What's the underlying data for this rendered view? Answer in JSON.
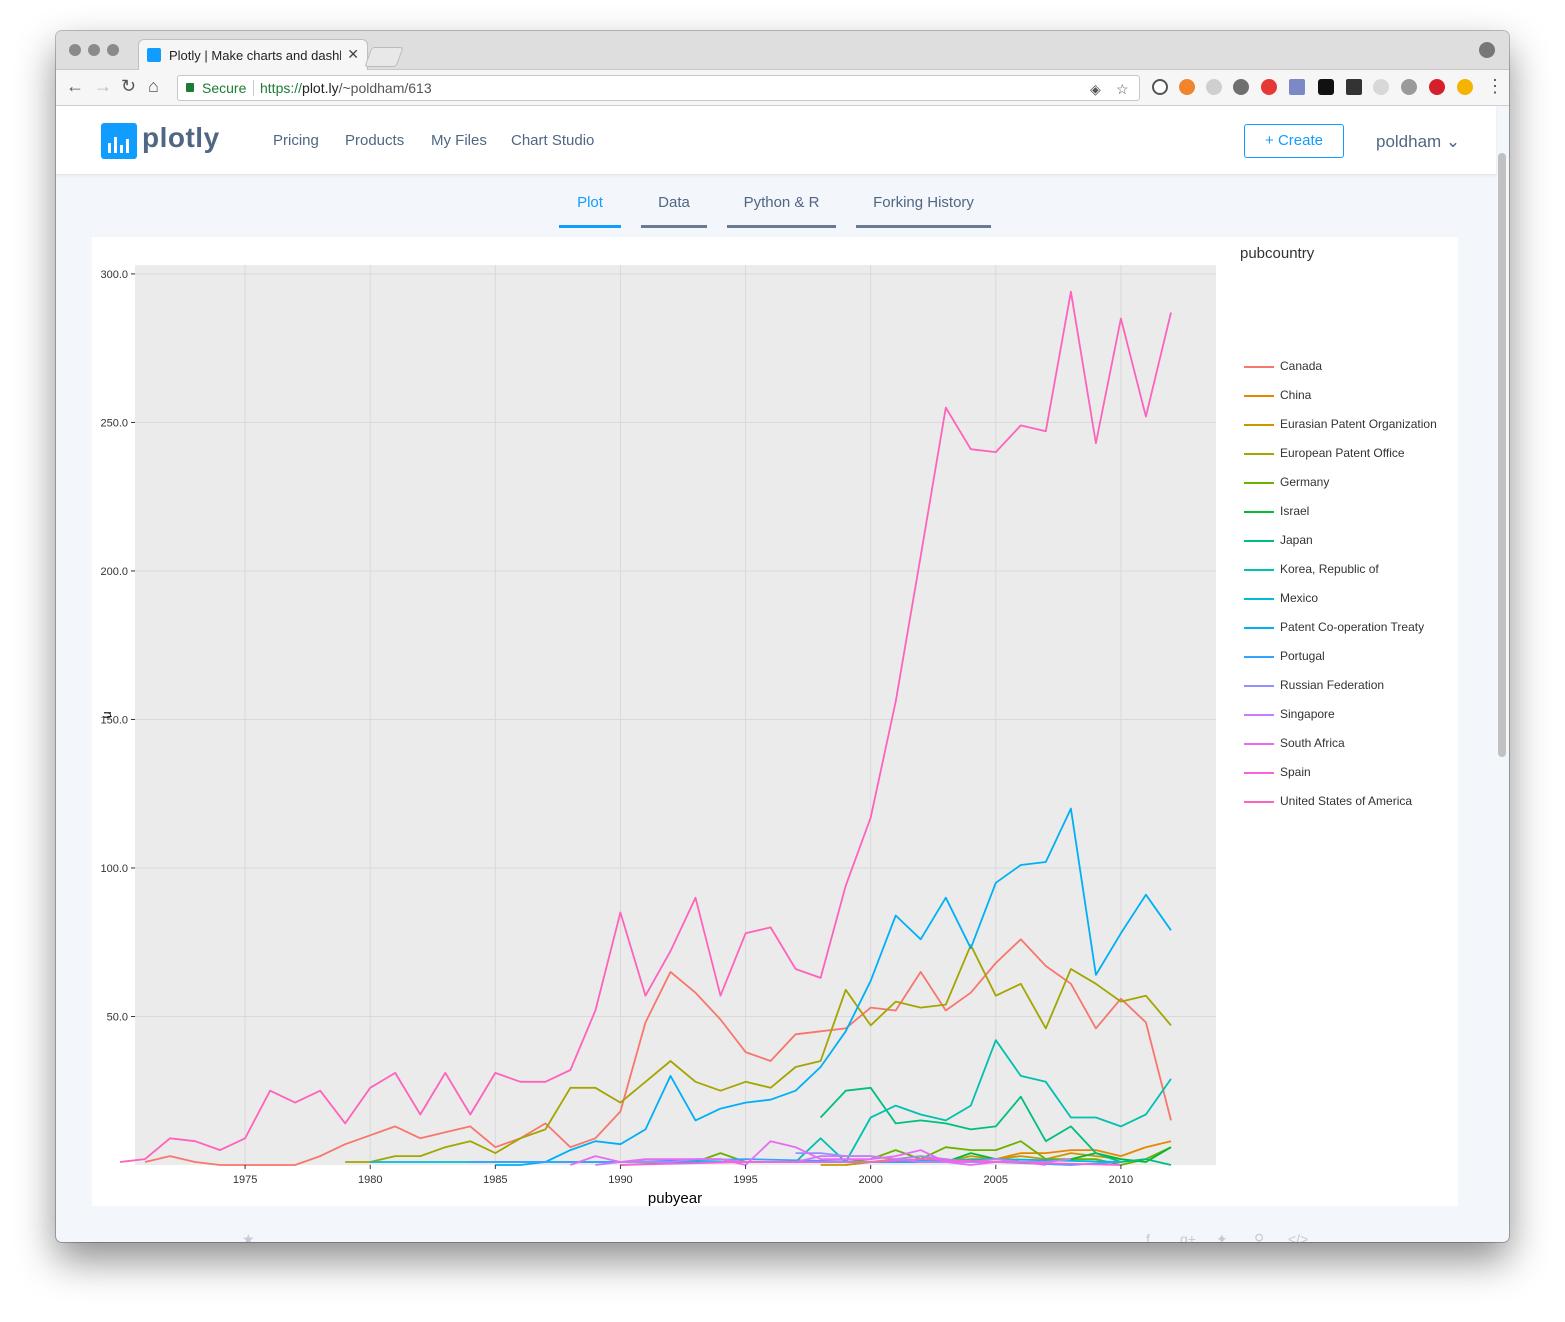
{
  "browser": {
    "tab_title": "Plotly | Make charts and dashb",
    "tab_close": "✕",
    "secure_label": "Secure",
    "url_scheme": "https://",
    "url_host": "plot.ly",
    "url_path": "/~poldham/613"
  },
  "site_nav": {
    "logo_text": "plotly",
    "links": [
      "Pricing",
      "Products",
      "My Files",
      "Chart Studio"
    ],
    "create_label": "+ Create",
    "user_label": "poldham ⌄"
  },
  "page_tabs": [
    "Plot",
    "Data",
    "Python & R",
    "Forking History"
  ],
  "page_tabs_active": "Plot",
  "chart_data": {
    "type": "line",
    "title": "",
    "xlabel": "pubyear",
    "ylabel": "n",
    "xlim": [
      1970.6,
      2013.8
    ],
    "ylim": [
      0,
      303
    ],
    "x_ticks": [
      1975,
      1980,
      1985,
      1990,
      1995,
      2000,
      2005,
      2010
    ],
    "y_ticks": [
      50,
      100,
      150,
      200,
      250,
      300
    ],
    "grid": true,
    "legend_title": "pubcountry",
    "legend_position": "right",
    "series": [
      {
        "name": "Canada",
        "color": "#F8766D",
        "x": [
          1971,
          1972,
          1973,
          1974,
          1975,
          1976,
          1977,
          1978,
          1979,
          1980,
          1981,
          1982,
          1983,
          1984,
          1985,
          1986,
          1987,
          1988,
          1989,
          1990,
          1991,
          1992,
          1993,
          1994,
          1995,
          1996,
          1997,
          1998,
          1999,
          2000,
          2001,
          2002,
          2003,
          2004,
          2005,
          2006,
          2007,
          2008,
          2009,
          2010,
          2011,
          2012
        ],
        "y": [
          1,
          3,
          1,
          0,
          0,
          0,
          0,
          3,
          7,
          10,
          13,
          9,
          11,
          13,
          6,
          9,
          14,
          6,
          9,
          18,
          48,
          65,
          58,
          49,
          38,
          35,
          44,
          45,
          46,
          53,
          52,
          65,
          52,
          58,
          68,
          76,
          67,
          61,
          46,
          56,
          48,
          15
        ]
      },
      {
        "name": "China",
        "color": "#E58700",
        "x": [
          1999,
          2000,
          2001,
          2002,
          2003,
          2004,
          2005,
          2006,
          2007,
          2008,
          2009,
          2010,
          2011,
          2012
        ],
        "y": [
          0,
          1,
          1,
          1,
          1,
          2,
          2,
          4,
          4,
          5,
          5,
          3,
          6,
          8
        ]
      },
      {
        "name": "Eurasian Patent Organization",
        "color": "#C99800",
        "x": [
          1998,
          1999,
          2000,
          2001,
          2002,
          2003,
          2004,
          2005,
          2006,
          2007,
          2008,
          2009,
          2010
        ],
        "y": [
          0,
          0,
          1,
          2,
          3,
          1,
          3,
          2,
          3,
          2,
          4,
          3,
          2
        ]
      },
      {
        "name": "European Patent Office",
        "color": "#A3A500",
        "x": [
          1979,
          1980,
          1981,
          1982,
          1983,
          1984,
          1985,
          1986,
          1987,
          1988,
          1989,
          1990,
          1991,
          1992,
          1993,
          1994,
          1995,
          1996,
          1997,
          1998,
          1999,
          2000,
          2001,
          2002,
          2003,
          2004,
          2005,
          2006,
          2007,
          2008,
          2009,
          2010,
          2011,
          2012
        ],
        "y": [
          1,
          1,
          3,
          3,
          6,
          8,
          4,
          9,
          12,
          26,
          26,
          21,
          28,
          35,
          28,
          25,
          28,
          26,
          33,
          35,
          59,
          47,
          55,
          53,
          54,
          74,
          57,
          61,
          46,
          66,
          61,
          55,
          57,
          47
        ]
      },
      {
        "name": "Germany",
        "color": "#6BB100",
        "x": [
          1990,
          1993,
          1994,
          1995,
          1999,
          2000,
          2001,
          2002,
          2003,
          2004,
          2005,
          2006,
          2007,
          2008,
          2009,
          2010,
          2011,
          2012
        ],
        "y": [
          0,
          1,
          4,
          1,
          1,
          2,
          5,
          2,
          6,
          5,
          5,
          8,
          2,
          2,
          2,
          0,
          2,
          6
        ]
      },
      {
        "name": "Israel",
        "color": "#00BA38",
        "x": [
          2000,
          2001,
          2002,
          2003,
          2004,
          2005,
          2006,
          2007,
          2008,
          2009,
          2010,
          2011,
          2012
        ],
        "y": [
          1,
          1,
          1,
          1,
          4,
          2,
          1,
          1,
          2,
          4,
          2,
          1,
          6
        ]
      },
      {
        "name": "Japan",
        "color": "#00BF7D",
        "x": [
          1998,
          1999,
          2000,
          2001,
          2002,
          2003,
          2004,
          2005,
          2006,
          2007,
          2008,
          2009,
          2010,
          2011,
          2012
        ],
        "y": [
          16,
          25,
          26,
          14,
          15,
          14,
          12,
          13,
          23,
          8,
          13,
          4,
          1,
          2,
          0
        ]
      },
      {
        "name": "Korea, Republic of",
        "color": "#00C0AF",
        "x": [
          1997,
          1998,
          1999,
          2000,
          2001,
          2002,
          2003,
          2004,
          2005,
          2006,
          2007,
          2008,
          2009,
          2010,
          2011,
          2012
        ],
        "y": [
          1,
          9,
          1,
          16,
          20,
          17,
          15,
          20,
          42,
          30,
          28,
          16,
          16,
          13,
          17,
          29
        ]
      },
      {
        "name": "Mexico",
        "color": "#00BCD8",
        "x": [
          1980,
          1985,
          1990,
          1995,
          2000,
          2005,
          2010
        ],
        "y": [
          1,
          1,
          1,
          1,
          1,
          2,
          1
        ]
      },
      {
        "name": "Patent Co-operation Treaty",
        "color": "#00B0F6",
        "x": [
          1985,
          1986,
          1987,
          1988,
          1989,
          1990,
          1991,
          1992,
          1993,
          1994,
          1995,
          1996,
          1997,
          1998,
          1999,
          2000,
          2001,
          2002,
          2003,
          2004,
          2005,
          2006,
          2007,
          2008,
          2009,
          2010,
          2011,
          2012
        ],
        "y": [
          0,
          0,
          1,
          5,
          8,
          7,
          12,
          30,
          15,
          19,
          21,
          22,
          25,
          33,
          45,
          62,
          84,
          76,
          90,
          73,
          95,
          101,
          102,
          120,
          64,
          78,
          91,
          79
        ]
      },
      {
        "name": "Portugal",
        "color": "#35A2FF",
        "x": [
          1984,
          1990,
          1995,
          2000,
          2005,
          2008,
          2010
        ],
        "y": [
          1,
          1,
          2,
          1,
          1,
          0,
          1
        ]
      },
      {
        "name": "Russian Federation",
        "color": "#9590FF",
        "x": [
          1997,
          1998,
          1999,
          2000,
          2001,
          2002,
          2003,
          2004,
          2005,
          2006,
          2007,
          2008
        ],
        "y": [
          4,
          4,
          3,
          3,
          2,
          3,
          2,
          1,
          1,
          1,
          1,
          2
        ]
      },
      {
        "name": "Singapore",
        "color": "#C77CFF",
        "x": [
          1989,
          1990,
          1991,
          1992,
          1993,
          1994,
          1995,
          1996,
          1997,
          1998,
          1999,
          2000,
          2001,
          2002,
          2003,
          2004,
          2005,
          2006,
          2007,
          2008
        ],
        "y": [
          0,
          1,
          1,
          1,
          2,
          2,
          1,
          1,
          1,
          3,
          3,
          3,
          2,
          1,
          1,
          1,
          2,
          1,
          1,
          2
        ]
      },
      {
        "name": "South Africa",
        "color": "#E76BF3",
        "x": [
          1988,
          1989,
          1990,
          1991,
          1992,
          1993,
          1994,
          1995,
          1996,
          1997,
          1998,
          1999,
          2000,
          2001,
          2002,
          2003,
          2004,
          2005,
          2006,
          2007
        ],
        "y": [
          0,
          3,
          1,
          2,
          2,
          2,
          2,
          0,
          8,
          6,
          2,
          2,
          2,
          3,
          5,
          1,
          0,
          1,
          1,
          0
        ]
      },
      {
        "name": "Spain",
        "color": "#FA62DB",
        "x": [
          1990,
          1995,
          2000,
          2002,
          2005,
          2010
        ],
        "y": [
          0,
          1,
          1,
          2,
          1,
          0
        ]
      },
      {
        "name": "United States of America",
        "color": "#FF62BC",
        "x": [
          1970,
          1971,
          1972,
          1973,
          1974,
          1975,
          1976,
          1977,
          1978,
          1979,
          1980,
          1981,
          1982,
          1983,
          1984,
          1985,
          1986,
          1987,
          1988,
          1989,
          1990,
          1991,
          1992,
          1993,
          1994,
          1995,
          1996,
          1997,
          1998,
          1999,
          2000,
          2001,
          2002,
          2003,
          2004,
          2005,
          2006,
          2007,
          2008,
          2009,
          2010,
          2011,
          2012
        ],
        "y": [
          1,
          2,
          9,
          8,
          5,
          9,
          25,
          21,
          25,
          14,
          26,
          31,
          17,
          31,
          17,
          31,
          28,
          28,
          32,
          52,
          85,
          57,
          72,
          90,
          57,
          78,
          80,
          66,
          63,
          94,
          117,
          156,
          205,
          255,
          241,
          240,
          249,
          247,
          294,
          243,
          285,
          252,
          287
        ]
      }
    ]
  }
}
